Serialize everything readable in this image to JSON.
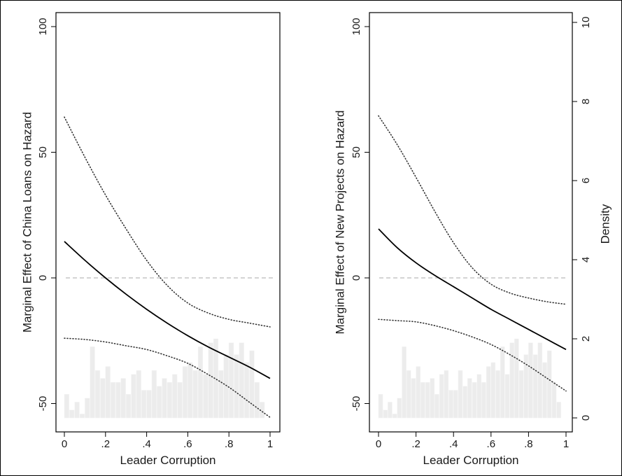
{
  "chart_data": [
    {
      "type": "line",
      "xlabel": "Leader Corruption",
      "ylabel": "Marginal Effect of China Loans on Hazard",
      "xlim": [
        0,
        1
      ],
      "ylim": [
        -55,
        100
      ],
      "xticks": [
        0,
        0.2,
        0.4,
        0.6,
        0.8,
        1
      ],
      "xtick_labels": [
        "0",
        ".2",
        ".4",
        ".6",
        ".8",
        "1"
      ],
      "yticks": [
        -50,
        0,
        50,
        100
      ],
      "ytick_labels": [
        "-50",
        "0",
        "50",
        "100"
      ],
      "reference_line": 0,
      "x": [
        0,
        0.1,
        0.2,
        0.3,
        0.4,
        0.5,
        0.6,
        0.7,
        0.8,
        0.9,
        1
      ],
      "series": [
        {
          "role": "estimate",
          "style": "solid",
          "values": [
            14.5,
            7,
            0,
            -6.5,
            -12.5,
            -18,
            -23,
            -27.5,
            -31.5,
            -35.5,
            -40
          ]
        },
        {
          "role": "upper",
          "style": "dotted",
          "values": [
            64,
            48,
            33,
            19.5,
            7,
            -3,
            -10,
            -14,
            -16.5,
            -18,
            -19.5
          ]
        },
        {
          "role": "lower",
          "style": "dotted",
          "values": [
            -24,
            -24.5,
            -25.5,
            -27,
            -28.5,
            -31,
            -34,
            -38.5,
            -43.5,
            -49.5,
            -55.5
          ]
        }
      ],
      "grid": false,
      "legend": "none"
    },
    {
      "type": "line",
      "xlabel": "Leader Corruption",
      "ylabel": "Marginal Effect of New Projects on Hazard",
      "y2label": "Density",
      "xlim": [
        0,
        1
      ],
      "ylim": [
        -55,
        100
      ],
      "y2lim": [
        0,
        10
      ],
      "xticks": [
        0,
        0.2,
        0.4,
        0.6,
        0.8,
        1
      ],
      "xtick_labels": [
        "0",
        ".2",
        ".4",
        ".6",
        ".8",
        "1"
      ],
      "yticks": [
        -50,
        0,
        50,
        100
      ],
      "ytick_labels": [
        "-50",
        "0",
        "50",
        "100"
      ],
      "y2ticks": [
        0,
        2,
        4,
        6,
        8,
        10
      ],
      "y2tick_labels": [
        "0",
        "2",
        "4",
        "6",
        "8",
        "10"
      ],
      "reference_line": 0,
      "x": [
        0,
        0.1,
        0.2,
        0.3,
        0.4,
        0.5,
        0.6,
        0.7,
        0.8,
        0.9,
        1
      ],
      "series": [
        {
          "role": "estimate",
          "style": "solid",
          "values": [
            19.5,
            12,
            6,
            1,
            -3.5,
            -8,
            -12.5,
            -16.5,
            -20.5,
            -24.5,
            -28.5
          ]
        },
        {
          "role": "upper",
          "style": "dotted",
          "values": [
            64.5,
            53,
            40,
            26.5,
            14,
            4,
            -2.5,
            -6,
            -8,
            -9.5,
            -10.5
          ]
        },
        {
          "role": "lower",
          "style": "dotted",
          "values": [
            -16.5,
            -17,
            -17.5,
            -19,
            -21,
            -23.5,
            -26.5,
            -30.5,
            -35,
            -40,
            -45
          ]
        }
      ],
      "grid": false,
      "legend": "none"
    }
  ],
  "histogram": {
    "description_of_encoding": "density of Leader Corruption shown on the Density axis (0-10)",
    "bin_width": 0.025,
    "bin_starts": [
      0,
      0.025,
      0.05,
      0.075,
      0.1,
      0.125,
      0.15,
      0.175,
      0.2,
      0.225,
      0.25,
      0.275,
      0.3,
      0.325,
      0.35,
      0.375,
      0.4,
      0.425,
      0.45,
      0.475,
      0.5,
      0.525,
      0.55,
      0.575,
      0.6,
      0.625,
      0.65,
      0.675,
      0.7,
      0.725,
      0.75,
      0.775,
      0.8,
      0.825,
      0.85,
      0.875,
      0.9,
      0.925,
      0.95
    ],
    "density": [
      0.6,
      0.2,
      0.4,
      0.1,
      0.5,
      1.8,
      1.2,
      1.0,
      1.3,
      0.9,
      0.9,
      1.0,
      0.6,
      1.1,
      1.2,
      0.7,
      0.7,
      1.2,
      0.8,
      1.0,
      0.9,
      1.1,
      0.9,
      1.3,
      1.4,
      1.2,
      1.8,
      1.1,
      1.9,
      2.0,
      1.2,
      1.6,
      1.9,
      1.6,
      1.9,
      1.4,
      1.7,
      0.9,
      0.4
    ]
  },
  "colors": {
    "estimate_line": "#000000",
    "ci_line": "#333333",
    "reference_line": "#bbbbbb",
    "histogram_fill": "#ececec",
    "frame": "#000000"
  }
}
